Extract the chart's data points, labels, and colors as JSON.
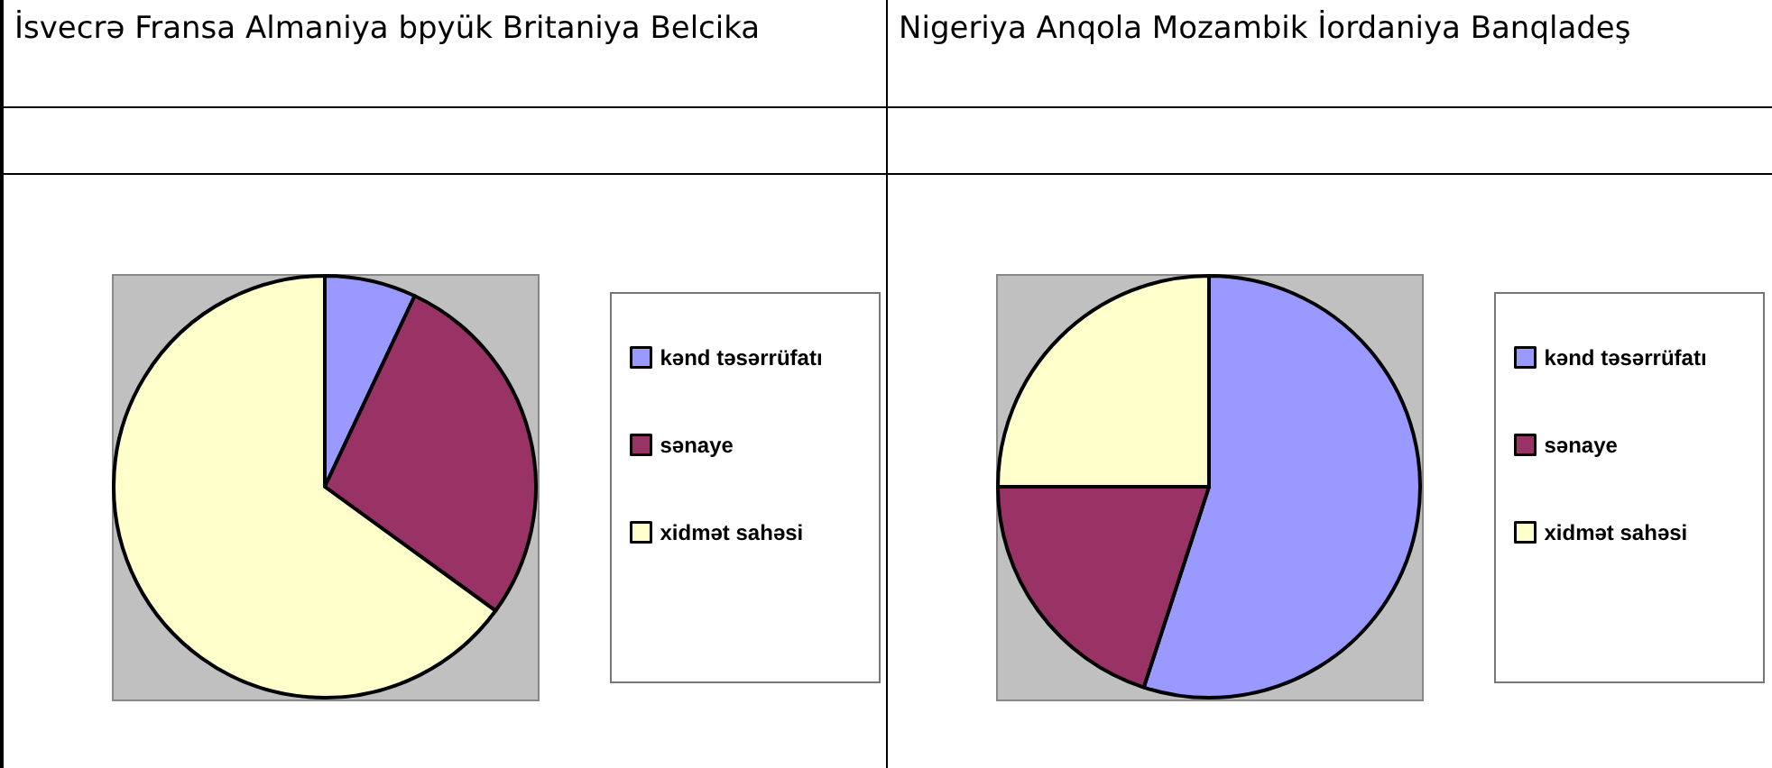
{
  "chart_data": [
    {
      "type": "pie",
      "title": "İsvecrə Fransa Almaniya bpyük Britaniya Belcika",
      "categories": [
        "kənd təsərrüfatı",
        "sənaye",
        "xidmət sahəsi"
      ],
      "values": [
        7,
        28,
        65
      ],
      "colors": [
        "#9999ff",
        "#993366",
        "#ffffcc"
      ],
      "legend": "right"
    },
    {
      "type": "pie",
      "title": "Nigeriya Anqola Mozambik İordaniya Banqladeş",
      "categories": [
        "kənd təsərrüfatı",
        "sənaye",
        "xidmət sahəsi"
      ],
      "values": [
        55,
        20,
        25
      ],
      "colors": [
        "#9999ff",
        "#993366",
        "#ffffcc"
      ],
      "legend": "right"
    }
  ]
}
